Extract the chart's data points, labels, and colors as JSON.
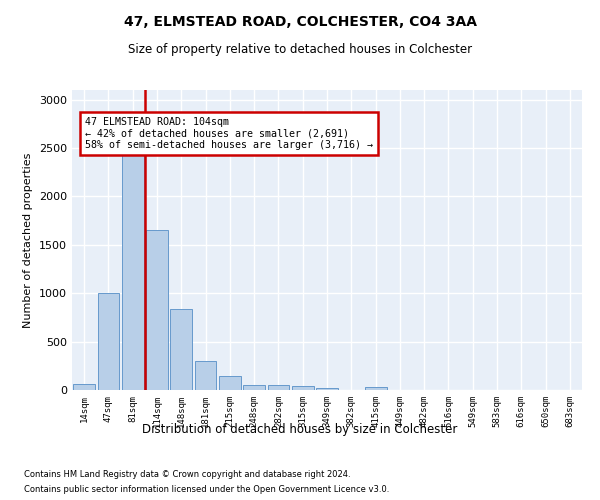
{
  "title1": "47, ELMSTEAD ROAD, COLCHESTER, CO4 3AA",
  "title2": "Size of property relative to detached houses in Colchester",
  "xlabel": "Distribution of detached houses by size in Colchester",
  "ylabel": "Number of detached properties",
  "bar_labels": [
    "14sqm",
    "47sqm",
    "81sqm",
    "114sqm",
    "148sqm",
    "181sqm",
    "215sqm",
    "248sqm",
    "282sqm",
    "315sqm",
    "349sqm",
    "382sqm",
    "415sqm",
    "449sqm",
    "482sqm",
    "516sqm",
    "549sqm",
    "583sqm",
    "616sqm",
    "650sqm",
    "683sqm"
  ],
  "bar_values": [
    60,
    1000,
    2460,
    1650,
    840,
    300,
    140,
    55,
    55,
    40,
    25,
    0,
    30,
    0,
    0,
    0,
    0,
    0,
    0,
    0,
    0
  ],
  "bar_color": "#b8cfe8",
  "bar_edge_color": "#6699cc",
  "vline_color": "#cc0000",
  "annotation_text": "47 ELMSTEAD ROAD: 104sqm\n← 42% of detached houses are smaller (2,691)\n58% of semi-detached houses are larger (3,716) →",
  "ylim": [
    0,
    3100
  ],
  "yticks": [
    0,
    500,
    1000,
    1500,
    2000,
    2500,
    3000
  ],
  "bg_color": "#e8eff8",
  "grid_color": "white",
  "footer1": "Contains HM Land Registry data © Crown copyright and database right 2024.",
  "footer2": "Contains public sector information licensed under the Open Government Licence v3.0."
}
